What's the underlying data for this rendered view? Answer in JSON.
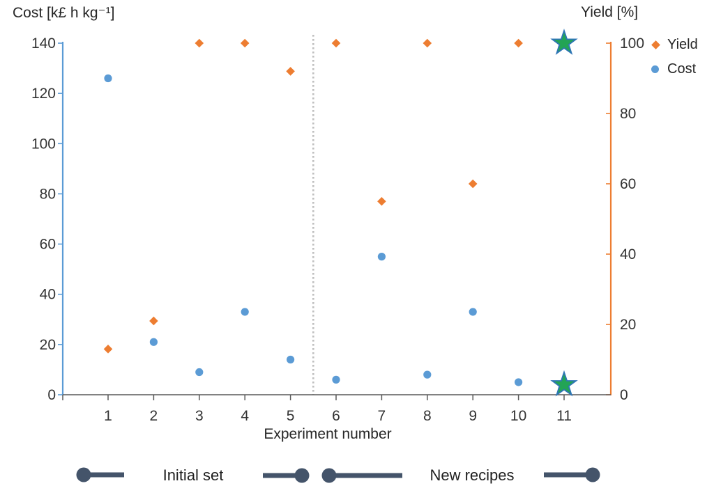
{
  "titles": {
    "left_axis": "Cost [k£ h kg⁻¹]",
    "right_axis": "Yield [%]",
    "x_axis": "Experiment number"
  },
  "legend": [
    {
      "label": "Yield",
      "marker": "diamond-icon",
      "color": "#ED7D31"
    },
    {
      "label": "Cost",
      "marker": "circle-icon",
      "color": "#5B9BD5"
    }
  ],
  "annotations": {
    "initial_set": "Initial set",
    "new_recipes": "New recipes"
  },
  "colors": {
    "cost_blue": "#5B9BD5",
    "yield_orange": "#ED7D31",
    "star_fill": "#23A455",
    "star_stroke": "#2E75B6",
    "range_bar": "#44546A",
    "separator": "#BFBFBF",
    "axis_line_gray": "#595959",
    "tick_text": "#333333"
  },
  "chart_data": {
    "type": "scatter",
    "x": [
      1,
      2,
      3,
      4,
      5,
      6,
      7,
      8,
      9,
      10,
      11
    ],
    "xlabel": "Experiment number",
    "series": [
      {
        "name": "Yield",
        "axis": "right",
        "marker": "diamond",
        "values": [
          13,
          21,
          100,
          100,
          92,
          100,
          55,
          100,
          60,
          100,
          100
        ]
      },
      {
        "name": "Cost",
        "axis": "left",
        "marker": "circle",
        "values": [
          126,
          21,
          9,
          33,
          14,
          6,
          55,
          8,
          33,
          5,
          4
        ]
      }
    ],
    "highlight_x": 11,
    "highlight_marker": "star",
    "left_axis": {
      "label": "Cost [k£ h kg⁻¹]",
      "min": 0,
      "max": 140,
      "tick_step": 20,
      "ticks": [
        0,
        20,
        40,
        60,
        80,
        100,
        120,
        140
      ]
    },
    "right_axis": {
      "label": "Yield [%]",
      "min": 0,
      "max": 100,
      "tick_step": 20,
      "ticks": [
        0,
        20,
        40,
        60,
        80,
        100
      ]
    },
    "separator_x": 5.5,
    "grid": false,
    "legend_position": "top-right",
    "legend_entries": [
      "Yield",
      "Cost"
    ],
    "groups": [
      {
        "label": "Initial set",
        "x_from": 1,
        "x_to": 5
      },
      {
        "label": "New recipes",
        "x_from": 6,
        "x_to": 11
      }
    ]
  }
}
